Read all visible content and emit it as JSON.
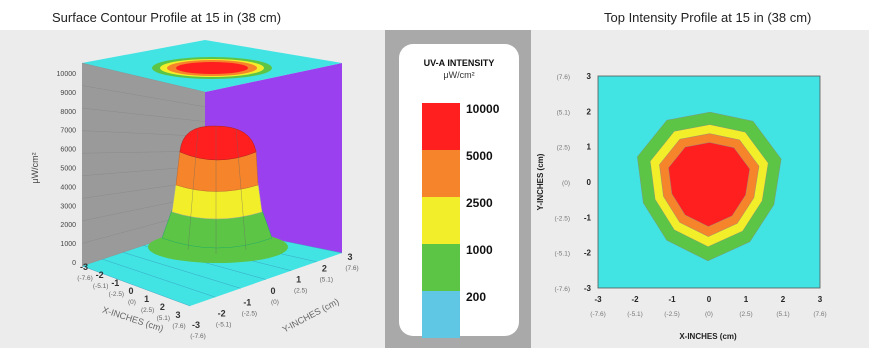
{
  "titles": {
    "left": "Surface Contour Profile at 15 in (38 cm)",
    "right": "Top Intensity Profile at 15 in (38 cm)"
  },
  "legend": {
    "title": "UV-A INTENSITY",
    "unit": "μW/cm²",
    "levels": [
      {
        "value": "10000",
        "color": "#ff1f1f"
      },
      {
        "value": "5000",
        "color": "#f5842a"
      },
      {
        "value": "2500",
        "color": "#f3ee2a"
      },
      {
        "value": "1000",
        "color": "#5cc545"
      },
      {
        "value": "200",
        "color": "#5fc7e3"
      }
    ]
  },
  "chart_data": [
    {
      "type": "surface",
      "title": "Surface Contour Profile at 15 in (38 cm)",
      "zlabel": "μW/cm²",
      "xlabel": "X-INCHES (cm)",
      "ylabel": "Y-INCHES (cm)",
      "z_ticks": [
        "0",
        "1000",
        "2000",
        "3000",
        "4000",
        "5000",
        "6000",
        "7000",
        "8000",
        "9000",
        "10000"
      ],
      "x_ticks": [
        "-3",
        "-2",
        "-1",
        "0",
        "1",
        "2",
        "3"
      ],
      "x_ticks_cm": [
        "(-7.6)",
        "(-5.1)",
        "(-2.5)",
        "(0)",
        "(2.5)",
        "(5.1)",
        "(7.6)"
      ],
      "y_ticks": [
        "-3",
        "-2",
        "-1",
        "0",
        "1",
        "2",
        "3"
      ],
      "y_ticks_cm": [
        "(-7.6)",
        "(-5.1)",
        "(-2.5)",
        "(0)",
        "(2.5)",
        "(5.1)",
        "(7.6)"
      ],
      "zlim": [
        0,
        10000
      ],
      "xlim": [
        -3,
        3
      ],
      "ylim": [
        -3,
        3
      ]
    },
    {
      "type": "contour",
      "title": "Top Intensity Profile at 15 in (38 cm)",
      "xlabel": "X-INCHES (cm)",
      "ylabel": "Y-INCHES (cm)",
      "x_ticks": [
        "-3",
        "-2",
        "-1",
        "0",
        "1",
        "2",
        "3"
      ],
      "x_ticks_cm": [
        "(-7.6)",
        "(-5.1)",
        "(-2.5)",
        "(0)",
        "(2.5)",
        "(5.1)",
        "(7.6)"
      ],
      "y_ticks": [
        "3",
        "2",
        "1",
        "0",
        "-1",
        "-2",
        "-3"
      ],
      "y_ticks_cm": [
        "(7.6)",
        "(5.1)",
        "(2.5)",
        "(0)",
        "(-2.5)",
        "(-5.1)",
        "(-7.6)"
      ],
      "xlim": [
        -3,
        3
      ],
      "ylim": [
        -3,
        3
      ],
      "levels": [
        10000,
        5000,
        2500,
        1000,
        200
      ],
      "contour_radii_in": {
        "10000": 1.1,
        "5000": 1.35,
        "2500": 1.6,
        "1000": 1.95
      },
      "center": [
        0,
        0
      ]
    }
  ]
}
